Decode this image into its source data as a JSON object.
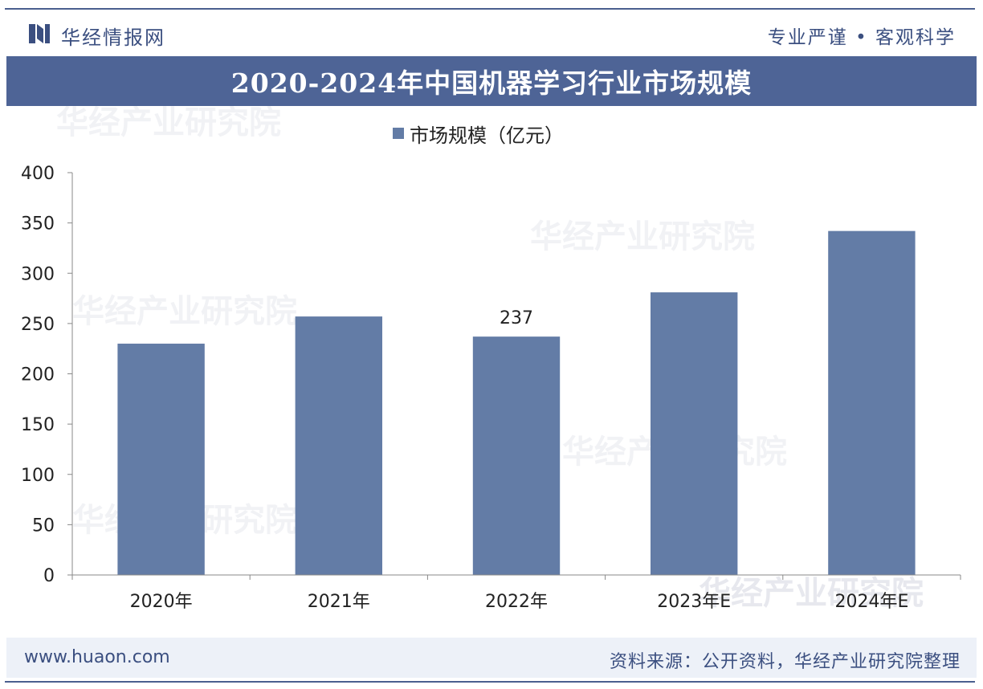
{
  "header": {
    "brand": "华经情报网",
    "slogan": "专业严谨 • 客观科学"
  },
  "title": "2020-2024年中国机器学习行业市场规模",
  "legend": {
    "label": "市场规模（亿元）"
  },
  "footer": {
    "url": "www.huaon.com",
    "source": "资料来源：公开资料，华经产业研究院整理"
  },
  "watermark": {
    "text": "华经产业研究院",
    "url": "www.huaon.com"
  },
  "colors": {
    "bar": "#637ca6",
    "title_band": "#4e6496",
    "brand": "#3b4f80"
  },
  "chart_data": {
    "type": "bar",
    "title": "2020-2024年中国机器学习行业市场规模",
    "categories": [
      "2020年",
      "2021年",
      "2022年",
      "2023年E",
      "2024年E"
    ],
    "series": [
      {
        "name": "市场规模（亿元）",
        "values": [
          230,
          257,
          237,
          281,
          342
        ]
      }
    ],
    "data_labels": [
      null,
      null,
      "237",
      null,
      null
    ],
    "xlabel": "",
    "ylabel": "",
    "ylim": [
      0,
      400
    ],
    "yticks": [
      "0",
      "50",
      "100",
      "150",
      "200",
      "250",
      "300",
      "350",
      "400"
    ],
    "grid": false,
    "legend_position": "top-center"
  }
}
